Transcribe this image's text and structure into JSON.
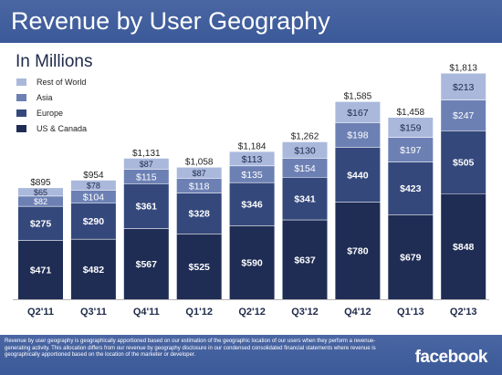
{
  "header": {
    "title": "Revenue by User Geography"
  },
  "subtitle": "In Millions",
  "footer": {
    "footnote": "Revenue by user geography is geographically apportioned based on our estimation of the geographic location of our users when they perform a revenue-generating activity. This allocation differs from our revenue by geography disclosure in our condensed consolidated financial statements where revenue is geographically apportioned based on the location of the marketer or developer.",
    "brand": "facebook"
  },
  "colors": {
    "header_bg": "#3b5998",
    "us_canada": "#1f2d55",
    "europe": "#34487c",
    "asia": "#6c80b4",
    "rest_of_world": "#aab8dc"
  },
  "chart_data": {
    "type": "bar",
    "stacked": true,
    "categories": [
      "Q2'11",
      "Q3'11",
      "Q4'11",
      "Q1'12",
      "Q2'12",
      "Q3'12",
      "Q4'12",
      "Q1'13",
      "Q2'13"
    ],
    "series": [
      {
        "name": "US & Canada",
        "color": "#1f2d55",
        "values": [
          471,
          482,
          567,
          525,
          590,
          637,
          780,
          679,
          848
        ]
      },
      {
        "name": "Europe",
        "color": "#34487c",
        "values": [
          275,
          290,
          361,
          328,
          346,
          341,
          440,
          423,
          505
        ]
      },
      {
        "name": "Asia",
        "color": "#6c80b4",
        "values": [
          82,
          104,
          115,
          118,
          135,
          154,
          198,
          197,
          247
        ]
      },
      {
        "name": "Rest of World",
        "color": "#aab8dc",
        "values": [
          65,
          78,
          87,
          87,
          113,
          130,
          167,
          159,
          213
        ]
      }
    ],
    "value_labels": [
      [
        "$471",
        "$482",
        "$567",
        "$525",
        "$590",
        "$637",
        "$780",
        "$679",
        "$848"
      ],
      [
        "$275",
        "$290",
        "$361",
        "$328",
        "$346",
        "$341",
        "$440",
        "$423",
        "$505"
      ],
      [
        "$82",
        "$104",
        "$115",
        "$118",
        "$135",
        "$154",
        "$198",
        "$197",
        "$247"
      ],
      [
        "$65",
        "$78",
        "$87",
        "$87",
        "$113",
        "$130",
        "$167",
        "$159",
        "$213"
      ]
    ],
    "totals": [
      "$895",
      "$954",
      "$1,131",
      "$1,058",
      "$1,184",
      "$1,262",
      "$1,585",
      "$1,458",
      "$1,813"
    ],
    "legend_order": [
      "Rest of World",
      "Asia",
      "Europe",
      "US & Canada"
    ],
    "legend_position": "top-left",
    "ylim": [
      0,
      1850
    ],
    "grid": false
  }
}
